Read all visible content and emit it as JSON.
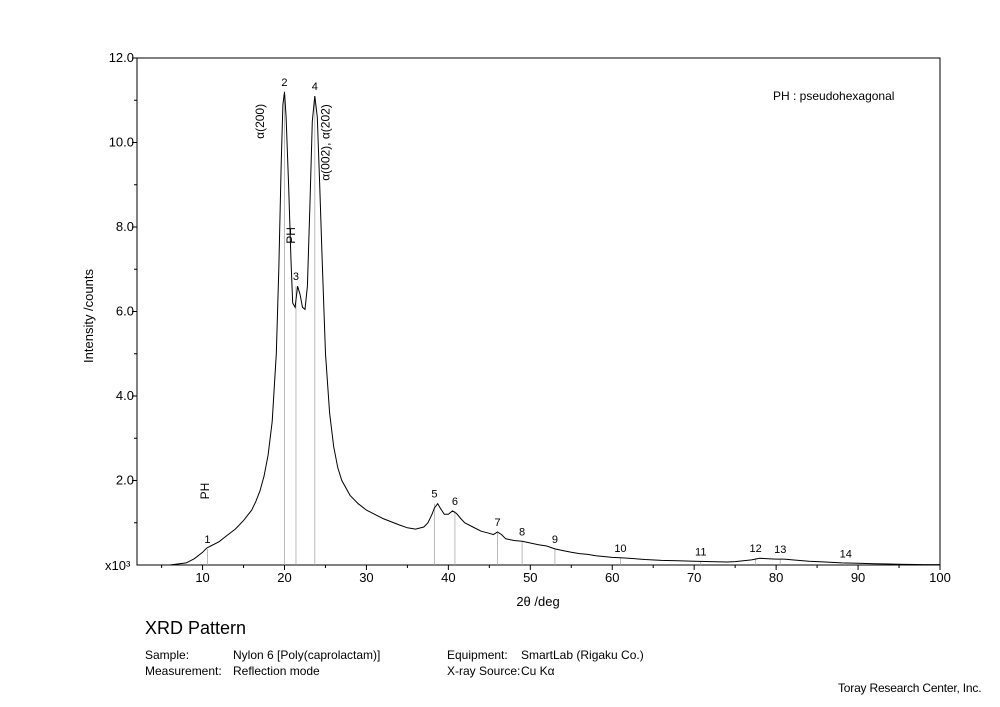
{
  "chart_data": {
    "type": "line",
    "xlabel": "2θ /deg",
    "ylabel": "Intensity /counts",
    "y_multiplier": "x10³",
    "xlim": [
      2,
      100
    ],
    "ylim": [
      0,
      12
    ],
    "xticks": [
      10,
      20,
      30,
      40,
      50,
      60,
      70,
      80,
      90,
      100
    ],
    "yticks": [
      2.0,
      4.0,
      6.0,
      8.0,
      10.0,
      12.0
    ],
    "grid": false,
    "legend_note": "PH : pseudohexagonal",
    "series": [
      {
        "x": [
          2,
          4,
          6,
          8,
          9,
          10,
          10.5,
          11,
          12,
          13,
          14,
          15,
          16,
          16.5,
          17,
          17.5,
          18,
          18.5,
          19,
          19.3,
          19.6,
          19.8,
          20,
          20.2,
          20.5,
          20.8,
          21,
          21.3,
          21.6,
          21.9,
          22.2,
          22.5,
          22.8,
          23.1,
          23.4,
          23.7,
          24,
          24.3,
          24.6,
          25,
          25.5,
          26,
          26.5,
          27,
          28,
          29,
          30,
          32,
          34,
          35,
          36,
          37,
          37.5,
          38,
          38.3,
          38.7,
          39,
          39.5,
          40,
          40.5,
          41,
          41.5,
          42,
          43,
          44,
          45,
          45.5,
          46,
          46.5,
          47,
          48,
          49,
          50,
          51,
          52,
          53,
          54,
          55,
          56,
          57,
          58,
          60,
          61,
          62,
          64,
          66,
          68,
          70,
          72,
          74,
          75,
          76,
          77,
          78,
          79,
          80,
          81,
          82,
          84,
          86,
          88,
          90,
          92,
          95,
          98,
          100
        ],
        "y": [
          0.0,
          0.0,
          0.0,
          0.05,
          0.15,
          0.3,
          0.4,
          0.45,
          0.55,
          0.7,
          0.85,
          1.05,
          1.3,
          1.5,
          1.75,
          2.1,
          2.6,
          3.4,
          5.0,
          7.0,
          9.5,
          10.9,
          11.2,
          10.6,
          9.0,
          7.2,
          6.2,
          6.1,
          6.6,
          6.4,
          6.1,
          6.05,
          6.6,
          8.5,
          10.5,
          11.1,
          10.6,
          9.0,
          7.2,
          5.0,
          3.6,
          2.8,
          2.3,
          2.0,
          1.65,
          1.45,
          1.3,
          1.1,
          0.95,
          0.88,
          0.85,
          0.9,
          1.0,
          1.2,
          1.35,
          1.45,
          1.35,
          1.2,
          1.2,
          1.28,
          1.22,
          1.1,
          1.0,
          0.9,
          0.8,
          0.75,
          0.72,
          0.78,
          0.72,
          0.62,
          0.58,
          0.56,
          0.52,
          0.48,
          0.45,
          0.38,
          0.34,
          0.3,
          0.27,
          0.25,
          0.22,
          0.18,
          0.17,
          0.16,
          0.13,
          0.11,
          0.1,
          0.09,
          0.08,
          0.07,
          0.08,
          0.1,
          0.12,
          0.16,
          0.15,
          0.14,
          0.14,
          0.12,
          0.09,
          0.07,
          0.05,
          0.04,
          0.03,
          0.02,
          0.01,
          0.01
        ]
      }
    ],
    "peaks": [
      {
        "label": "1",
        "x": 10.6,
        "y": 0.38
      },
      {
        "label": "2",
        "x": 20.0,
        "y": 11.2
      },
      {
        "label": "3",
        "x": 21.4,
        "y": 6.6
      },
      {
        "label": "4",
        "x": 23.7,
        "y": 11.1
      },
      {
        "label": "5",
        "x": 38.3,
        "y": 1.45
      },
      {
        "label": "6",
        "x": 40.8,
        "y": 1.28
      },
      {
        "label": "7",
        "x": 46.0,
        "y": 0.78
      },
      {
        "label": "8",
        "x": 49.0,
        "y": 0.56
      },
      {
        "label": "9",
        "x": 53.0,
        "y": 0.38
      },
      {
        "label": "10",
        "x": 61.0,
        "y": 0.17
      },
      {
        "label": "11",
        "x": 70.8,
        "y": 0.08
      },
      {
        "label": "12",
        "x": 77.5,
        "y": 0.16
      },
      {
        "label": "13",
        "x": 80.5,
        "y": 0.14
      },
      {
        "label": "14",
        "x": 88.5,
        "y": 0.04
      }
    ],
    "annotations": [
      {
        "text": "PH",
        "x": 10.8,
        "y": 1.75
      },
      {
        "text": "α(200)",
        "x": 17.5,
        "y": 10.5
      },
      {
        "text": "PH",
        "x": 21.3,
        "y": 7.8
      },
      {
        "text": "α(002), α(202)",
        "x": 25.5,
        "y": 10.0
      }
    ]
  },
  "footer": {
    "title": "XRD Pattern",
    "sample_label": "Sample:",
    "sample_value": "Nylon 6 [Poly(caprolactam)]",
    "measurement_label": "Measurement:",
    "measurement_value": "Reflection mode",
    "equipment_label": "Equipment:",
    "equipment_value": "SmartLab (Rigaku Co.)",
    "source_label": "X-ray Source:",
    "source_value": "Cu Kα",
    "company": "Toray Research Center, Inc."
  }
}
